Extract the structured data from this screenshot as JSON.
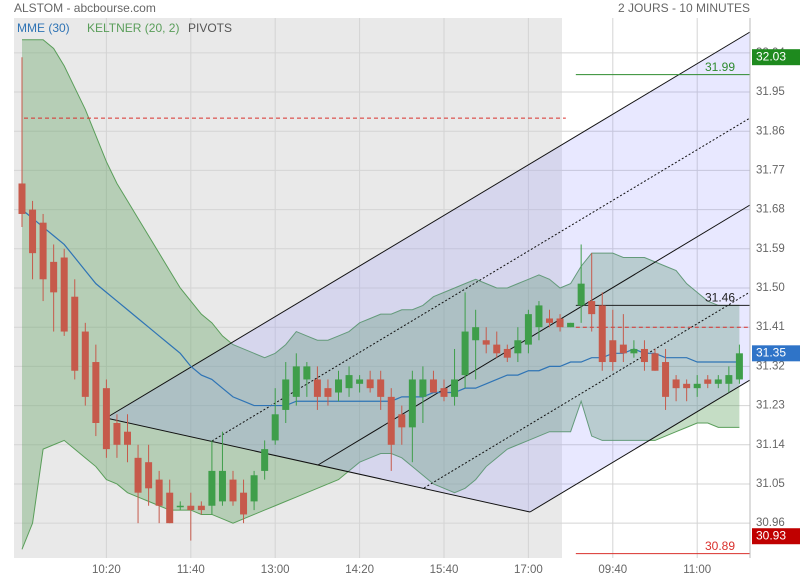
{
  "chart_data": {
    "type": "candlestick",
    "title": "ALSTOM - abcbourse.com",
    "subtitle": "2 JOURS - 10 MINUTES",
    "categories": [
      null,
      null,
      null,
      null,
      null,
      null,
      null,
      null,
      "10:20",
      null,
      null,
      null,
      null,
      null,
      null,
      null,
      "11:40",
      null,
      null,
      null,
      null,
      null,
      null,
      null,
      "13:00",
      null,
      null,
      null,
      null,
      null,
      null,
      null,
      "14:20",
      null,
      null,
      null,
      null,
      null,
      null,
      null,
      "15:40",
      null,
      null,
      null,
      null,
      null,
      null,
      null,
      "17:00",
      null,
      null,
      null,
      null,
      null,
      null,
      null,
      "09:40",
      null,
      null,
      null,
      null,
      null,
      null,
      null,
      "11:00",
      null,
      null,
      null,
      null
    ],
    "open": [
      31.74,
      31.68,
      31.65,
      31.56,
      31.57,
      31.48,
      31.4,
      31.33,
      31.27,
      31.19,
      31.17,
      31.11,
      31.1,
      31.06,
      31.03,
      31.0,
      31.0,
      31.0,
      31.0,
      31.01,
      31.06,
      31.03,
      31.01,
      31.08,
      31.15,
      31.22,
      31.25,
      31.29,
      31.29,
      31.27,
      31.26,
      31.27,
      31.28,
      31.29,
      31.29,
      31.25,
      31.21,
      31.18,
      31.25,
      31.29,
      31.27,
      31.25,
      31.3,
      31.38,
      31.38,
      31.37,
      31.36,
      31.35,
      31.37,
      31.41,
      31.43,
      31.43,
      31.41,
      31.46,
      31.47,
      31.46,
      31.38,
      31.37,
      31.35,
      31.36,
      31.35,
      31.33,
      31.29,
      31.28,
      31.27,
      31.29,
      31.28,
      31.28,
      31.29
    ],
    "high": [
      32.03,
      31.7,
      31.67,
      31.6,
      31.59,
      31.52,
      31.42,
      31.37,
      31.29,
      31.21,
      31.21,
      31.14,
      31.14,
      31.08,
      31.06,
      31.01,
      31.03,
      31.01,
      31.15,
      31.17,
      31.08,
      31.06,
      31.08,
      31.15,
      31.27,
      31.33,
      31.35,
      31.33,
      31.32,
      31.29,
      31.31,
      31.32,
      31.3,
      31.31,
      31.31,
      31.27,
      31.23,
      31.31,
      31.32,
      31.31,
      31.29,
      31.36,
      31.49,
      31.45,
      31.41,
      31.4,
      31.37,
      31.41,
      31.45,
      31.47,
      31.45,
      31.44,
      31.42,
      31.6,
      31.58,
      31.49,
      31.45,
      31.44,
      31.38,
      31.38,
      31.36,
      31.36,
      31.3,
      31.29,
      31.3,
      31.3,
      31.3,
      31.32,
      31.37
    ],
    "low": [
      31.64,
      31.52,
      31.47,
      31.4,
      31.39,
      31.29,
      31.23,
      31.16,
      31.11,
      31.11,
      31.1,
      30.96,
      31.0,
      30.96,
      30.96,
      30.99,
      30.92,
      30.98,
      30.98,
      31.0,
      31.0,
      30.96,
      30.99,
      31.06,
      31.14,
      31.19,
      31.23,
      31.25,
      31.22,
      31.23,
      31.24,
      31.25,
      31.26,
      31.26,
      31.22,
      31.08,
      31.14,
      31.1,
      31.19,
      31.26,
      31.24,
      31.23,
      31.27,
      31.29,
      31.35,
      31.34,
      31.33,
      31.33,
      31.35,
      31.38,
      31.41,
      31.4,
      31.41,
      31.42,
      31.4,
      31.31,
      31.31,
      31.33,
      31.34,
      31.31,
      31.31,
      31.22,
      31.24,
      31.24,
      31.25,
      31.27,
      31.27,
      31.26,
      31.28
    ],
    "close": [
      31.67,
      31.58,
      31.52,
      31.49,
      31.4,
      31.31,
      31.25,
      31.19,
      31.13,
      31.14,
      31.14,
      31.03,
      31.04,
      31.0,
      30.96,
      31.0,
      30.99,
      30.99,
      31.08,
      31.08,
      31.01,
      30.98,
      31.07,
      31.13,
      31.21,
      31.29,
      31.32,
      31.32,
      31.25,
      31.25,
      31.29,
      31.3,
      31.29,
      31.27,
      31.25,
      31.14,
      31.18,
      31.29,
      31.29,
      31.26,
      31.25,
      31.29,
      31.4,
      31.41,
      31.37,
      31.35,
      31.34,
      31.38,
      31.44,
      31.46,
      31.42,
      31.41,
      31.42,
      31.51,
      31.44,
      31.33,
      31.33,
      31.35,
      31.36,
      31.33,
      31.31,
      31.25,
      31.27,
      31.27,
      31.28,
      31.28,
      31.29,
      31.3,
      31.35
    ],
    "up_color": "#3f9e4a",
    "down_color": "#c65a4b",
    "mme": {
      "name": "MME (30)",
      "color": "#2f74b5",
      "values": [
        31.68,
        31.66,
        31.64,
        31.62,
        31.6,
        31.57,
        31.54,
        31.51,
        31.49,
        31.47,
        31.45,
        31.43,
        31.41,
        31.39,
        31.37,
        31.35,
        31.32,
        31.3,
        31.29,
        31.27,
        31.25,
        31.24,
        31.23,
        31.23,
        31.23,
        31.23,
        31.24,
        31.24,
        31.24,
        31.24,
        31.24,
        31.24,
        31.24,
        31.24,
        31.24,
        31.24,
        31.25,
        31.25,
        31.25,
        31.26,
        31.26,
        31.26,
        31.27,
        31.27,
        31.28,
        31.29,
        31.3,
        31.3,
        31.31,
        31.31,
        31.32,
        31.32,
        31.33,
        31.33,
        31.34,
        31.34,
        31.35,
        31.35,
        31.36,
        31.35,
        31.35,
        31.34,
        31.34,
        31.34,
        31.33,
        31.33,
        31.33,
        31.33,
        31.33
      ]
    },
    "keltner": {
      "name": "KELTNER (20, 2)",
      "color": "#5a9e5a",
      "upper": [
        32.07,
        32.07,
        32.07,
        32.05,
        32.01,
        31.96,
        31.91,
        31.85,
        31.79,
        31.74,
        31.7,
        31.66,
        31.62,
        31.58,
        31.54,
        31.5,
        31.47,
        31.44,
        31.42,
        31.39,
        31.37,
        31.36,
        31.35,
        31.34,
        31.35,
        31.37,
        31.4,
        31.39,
        31.38,
        31.38,
        31.39,
        31.4,
        31.42,
        31.43,
        31.44,
        31.44,
        31.45,
        31.45,
        31.46,
        31.48,
        31.49,
        31.5,
        31.51,
        31.52,
        31.51,
        31.5,
        31.5,
        31.51,
        31.52,
        31.53,
        31.52,
        31.5,
        31.51,
        31.55,
        31.58,
        31.58,
        31.58,
        31.57,
        31.57,
        31.57,
        31.56,
        31.55,
        31.54,
        31.51,
        31.49,
        31.47,
        31.46,
        31.46,
        31.46
      ],
      "lower": [
        30.9,
        30.96,
        31.13,
        31.14,
        31.15,
        31.13,
        31.11,
        31.09,
        31.06,
        31.05,
        31.03,
        31.02,
        31.01,
        31.0,
        30.99,
        30.99,
        30.99,
        30.98,
        30.98,
        30.97,
        30.96,
        30.97,
        30.98,
        30.99,
        31.0,
        31.01,
        31.02,
        31.03,
        31.04,
        31.05,
        31.06,
        31.08,
        31.1,
        31.11,
        31.12,
        31.12,
        31.11,
        31.09,
        31.07,
        31.05,
        31.04,
        31.03,
        31.04,
        31.06,
        31.09,
        31.11,
        31.13,
        31.14,
        31.15,
        31.16,
        31.17,
        31.17,
        31.17,
        31.24,
        31.16,
        31.15,
        31.15,
        31.15,
        31.15,
        31.15,
        31.15,
        31.16,
        31.17,
        31.18,
        31.19,
        31.19,
        31.18,
        31.18,
        31.18
      ]
    },
    "pivots": {
      "name": "PIVOTS",
      "previous": [
        {
          "value": 31.89,
          "color": "#d9302c",
          "style": "dashed"
        }
      ],
      "current": [
        {
          "value": 31.99,
          "color": "#2e8b2e",
          "style": "solid"
        },
        {
          "value": 31.46,
          "color": "#222222",
          "style": "solid"
        },
        {
          "value": 31.41,
          "color": "#d9302c",
          "style": "dashed"
        },
        {
          "value": 30.89,
          "color": "#d9302c",
          "style": "solid"
        }
      ]
    },
    "price_tags": [
      {
        "value": 32.03,
        "color": "#1e8a1e"
      },
      {
        "value": 31.35,
        "color": "#2f74c8"
      },
      {
        "value": 30.93,
        "color": "#c00000"
      }
    ],
    "ylim": [
      30.88,
      32.12
    ],
    "yticks": [
      30.96,
      31.05,
      31.14,
      31.23,
      31.32,
      31.41,
      {
        "value": 31.5,
        "label": "31.50"
      },
      31.59,
      31.68,
      31.77,
      31.86,
      31.95,
      32.04
    ],
    "grid": true
  }
}
